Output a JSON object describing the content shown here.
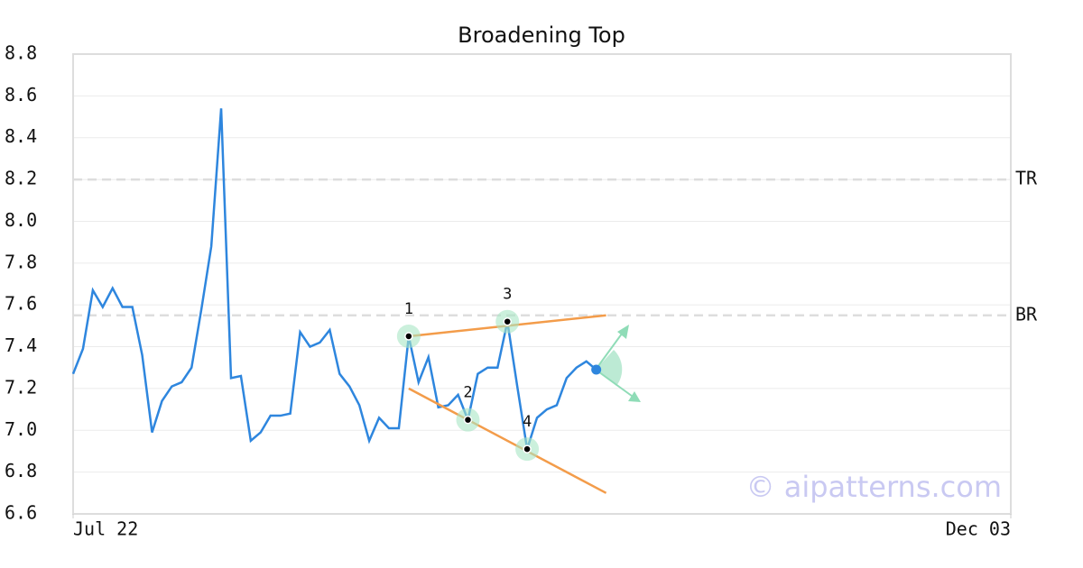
{
  "chart_data": {
    "type": "line",
    "title": "Broadening Top",
    "x": [
      0,
      1,
      2,
      3,
      4,
      5,
      6,
      7,
      8,
      9,
      10,
      11,
      12,
      13,
      14,
      15,
      16,
      17,
      18,
      19,
      20,
      21,
      22,
      23,
      24,
      25,
      26,
      27,
      28,
      29,
      30,
      31,
      32,
      33,
      34,
      35,
      36,
      37,
      38,
      39,
      40,
      41,
      42,
      43,
      44,
      45,
      46,
      47,
      48,
      49,
      50,
      51,
      52,
      53
    ],
    "series": [
      {
        "color": "#2e86de",
        "values": [
          7.27,
          7.39,
          7.67,
          7.59,
          7.68,
          7.59,
          7.59,
          7.36,
          6.99,
          7.14,
          7.21,
          7.23,
          7.3,
          7.58,
          7.88,
          8.54,
          7.25,
          7.26,
          6.95,
          6.99,
          7.07,
          7.07,
          7.08,
          7.47,
          7.4,
          7.42,
          7.48,
          7.27,
          7.21,
          7.12,
          6.95,
          7.06,
          7.01,
          7.01,
          7.45,
          7.23,
          7.35,
          7.11,
          7.12,
          7.17,
          7.05,
          7.27,
          7.3,
          7.3,
          7.52,
          7.21,
          6.91,
          7.06,
          7.1,
          7.12,
          7.25,
          7.3,
          7.33,
          7.29
        ]
      }
    ],
    "xlim": [
      0,
      95
    ],
    "xticks": [
      {
        "value": 0,
        "label": "Jul 22"
      },
      {
        "value": 95,
        "label": "Dec 03"
      }
    ],
    "ylim": [
      6.6,
      8.8
    ],
    "yticks": [
      6.6,
      6.8,
      {
        "value": 7,
        "label": "7.0"
      },
      7.2,
      7.4,
      7.6,
      7.8,
      {
        "value": 8,
        "label": "8.0"
      },
      8.2,
      8.4,
      8.6,
      8.8
    ],
    "grid": true,
    "levels": [
      {
        "label": "TR",
        "value": 8.2
      },
      {
        "label": "BR",
        "value": 7.55
      }
    ],
    "pattern_points": [
      {
        "label": "1",
        "x": 34,
        "y": 7.45
      },
      {
        "label": "2",
        "x": 40,
        "y": 7.05
      },
      {
        "label": "3",
        "x": 44,
        "y": 7.52
      },
      {
        "label": "4",
        "x": 46,
        "y": 6.91
      }
    ],
    "trend_lines": [
      {
        "color": "#f39c4a",
        "x": [
          34,
          54
        ],
        "y": [
          7.45,
          7.55
        ]
      },
      {
        "color": "#f39c4a",
        "x": [
          34,
          54
        ],
        "y": [
          7.2,
          6.7
        ]
      }
    ],
    "watermark": "© aipatterns.com"
  }
}
